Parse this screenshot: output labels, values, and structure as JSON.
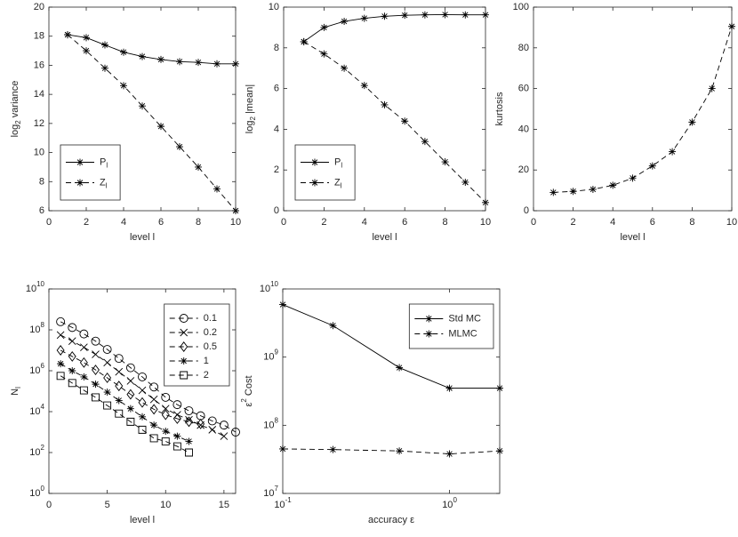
{
  "chart_data": [
    {
      "type": "line",
      "xlabel": "level l",
      "ylabel": "log_2 variance",
      "x": [
        1,
        2,
        3,
        4,
        5,
        6,
        7,
        8,
        9,
        10
      ],
      "xlim": [
        0,
        10
      ],
      "xticks": [
        0,
        2,
        4,
        6,
        8,
        10
      ],
      "ylim": [
        6,
        20
      ],
      "yticks": [
        6,
        8,
        10,
        12,
        14,
        16,
        18,
        20
      ],
      "legend": "southwest",
      "series": [
        {
          "name": "P_l",
          "color": "#000000",
          "marker": "*",
          "linestyle": "solid",
          "values": [
            18.1,
            17.9,
            17.4,
            16.9,
            16.6,
            16.4,
            16.25,
            16.2,
            16.1,
            16.1
          ]
        },
        {
          "name": "Z_l",
          "color": "#000000",
          "marker": "*",
          "linestyle": "dashed",
          "values": [
            18.1,
            17.0,
            15.8,
            14.6,
            13.2,
            11.8,
            10.4,
            9.0,
            7.5,
            6.0
          ]
        }
      ]
    },
    {
      "type": "line",
      "xlabel": "level l",
      "ylabel": "log_2 |mean|",
      "x": [
        1,
        2,
        3,
        4,
        5,
        6,
        7,
        8,
        9,
        10
      ],
      "xlim": [
        0,
        10
      ],
      "xticks": [
        0,
        2,
        4,
        6,
        8,
        10
      ],
      "ylim": [
        0,
        10
      ],
      "yticks": [
        0,
        2,
        4,
        6,
        8,
        10
      ],
      "legend": "southwest",
      "series": [
        {
          "name": "P_l",
          "color": "#000000",
          "marker": "*",
          "linestyle": "solid",
          "values": [
            8.3,
            9.0,
            9.3,
            9.45,
            9.55,
            9.6,
            9.62,
            9.63,
            9.62,
            9.62
          ]
        },
        {
          "name": "Z_l",
          "color": "#000000",
          "marker": "*",
          "linestyle": "dashed",
          "values": [
            8.3,
            7.7,
            7.0,
            6.15,
            5.2,
            4.4,
            3.4,
            2.4,
            1.4,
            0.4
          ]
        }
      ]
    },
    {
      "type": "line",
      "xlabel": "level l",
      "ylabel": "kurtosis",
      "x": [
        1,
        2,
        3,
        4,
        5,
        6,
        7,
        8,
        9,
        10
      ],
      "xlim": [
        0,
        10
      ],
      "xticks": [
        0,
        2,
        4,
        6,
        8,
        10
      ],
      "ylim": [
        0,
        100
      ],
      "yticks": [
        0,
        20,
        40,
        60,
        80,
        100
      ],
      "series": [
        {
          "color": "#000000",
          "marker": "*",
          "linestyle": "dashed",
          "values": [
            9,
            9.5,
            10.5,
            12.5,
            16,
            22,
            29,
            43.5,
            60,
            90.5
          ]
        }
      ]
    },
    {
      "type": "line",
      "xlabel": "level l",
      "ylabel": "N_l",
      "yscale": "log",
      "xlim": [
        0,
        16
      ],
      "xticks": [
        0,
        5,
        10,
        15
      ],
      "ylim": [
        1,
        10000000000
      ],
      "yticks": [
        {
          "value": 1,
          "label": "10^0"
        },
        {
          "value": 100,
          "label": "10^2"
        },
        {
          "value": 10000,
          "label": "10^4"
        },
        {
          "value": 1000000,
          "label": "10^6"
        },
        {
          "value": 100000000,
          "label": "10^8"
        },
        {
          "value": 10000000000,
          "label": "10^10"
        }
      ],
      "legend": "northeast",
      "series": [
        {
          "name": "0.1",
          "color": "#000000",
          "marker": "o",
          "linestyle": "dashed",
          "x": [
            1,
            2,
            3,
            4,
            5,
            6,
            7,
            8,
            9,
            10,
            11,
            12,
            13,
            14,
            15,
            16
          ],
          "values": [
            250000000.0,
            130000000.0,
            63000000.0,
            28000000.0,
            11000000.0,
            4000000.0,
            1400000.0,
            500000.0,
            160000.0,
            50000.0,
            22000.0,
            11000.0,
            6300.0,
            3500.0,
            2200.0,
            1000.0
          ]
        },
        {
          "name": "0.2",
          "color": "#000000",
          "marker": "x",
          "linestyle": "dashed",
          "x": [
            1,
            2,
            3,
            4,
            5,
            6,
            7,
            8,
            9,
            10,
            11,
            12,
            13,
            14,
            15
          ],
          "values": [
            56000000.0,
            28000000.0,
            14000000.0,
            6300000.0,
            2500000.0,
            890000.0,
            320000.0,
            110000.0,
            40000.0,
            14000.0,
            7000.0,
            4000.0,
            2200.0,
            1300.0,
            630.0
          ]
        },
        {
          "name": "0.5",
          "color": "#000000",
          "marker": "d",
          "linestyle": "dashed",
          "x": [
            1,
            2,
            3,
            4,
            5,
            6,
            7,
            8,
            9,
            10,
            11,
            12,
            13
          ],
          "values": [
            10000000.0,
            5000000.0,
            2500000.0,
            1100000.0,
            450000.0,
            180000.0,
            70000.0,
            28000.0,
            13000.0,
            7000.0,
            4500.0,
            3200.0,
            2500.0
          ]
        },
        {
          "name": "1",
          "color": "#000000",
          "marker": "*",
          "linestyle": "dashed",
          "x": [
            1,
            2,
            3,
            4,
            5,
            6,
            7,
            8,
            9,
            10,
            11,
            12
          ],
          "values": [
            2200000.0,
            1000000.0,
            500000.0,
            220000.0,
            90000.0,
            35000.0,
            14000.0,
            5600.0,
            2200.0,
            1100.0,
            630.0,
            350.0
          ]
        },
        {
          "name": "2",
          "color": "#000000",
          "marker": "s",
          "linestyle": "dashed",
          "x": [
            1,
            2,
            3,
            4,
            5,
            6,
            7,
            8,
            9,
            10,
            11,
            12
          ],
          "values": [
            560000.0,
            250000.0,
            110000.0,
            50000.0,
            20000.0,
            8000.0,
            3200.0,
            1300.0,
            500.0,
            350.0,
            200.0,
            100.0
          ]
        }
      ]
    },
    {
      "type": "line",
      "xlabel": "accuracy ε",
      "ylabel": "ε^2 Cost",
      "xscale": "log",
      "yscale": "log",
      "x": [
        0.1,
        0.2,
        0.5,
        1,
        2
      ],
      "xlim": [
        0.1,
        2
      ],
      "xticks": [
        {
          "value": 0.1,
          "label": "10^-1"
        },
        {
          "value": 1,
          "label": "10^0"
        }
      ],
      "ylim": [
        10000000,
        10000000000
      ],
      "yticks": [
        {
          "value": 10000000,
          "label": "10^7"
        },
        {
          "value": 100000000,
          "label": "10^8"
        },
        {
          "value": 1000000000,
          "label": "10^9"
        },
        {
          "value": 10000000000,
          "label": "10^10"
        }
      ],
      "legend": "northeast",
      "series": [
        {
          "name": "Std MC",
          "color": "#000000",
          "marker": "*",
          "linestyle": "solid",
          "values": [
            5900000000.0,
            2900000000.0,
            700000000.0,
            350000000.0,
            350000000.0
          ]
        },
        {
          "name": "MLMC",
          "color": "#000000",
          "marker": "*",
          "linestyle": "dashed",
          "values": [
            45000000.0,
            44000000.0,
            42000000.0,
            38000000.0,
            42000000.0
          ]
        }
      ]
    }
  ]
}
